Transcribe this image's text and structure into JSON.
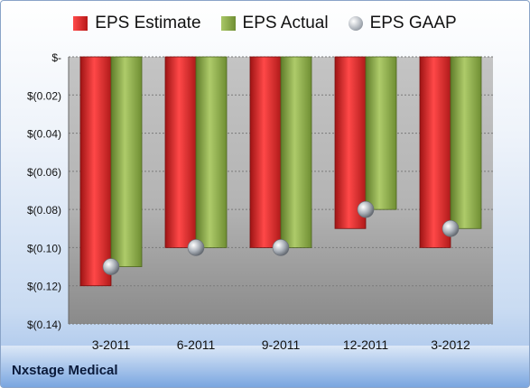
{
  "chart_data": {
    "type": "bar",
    "categories": [
      "3-2011",
      "6-2011",
      "9-2011",
      "12-2011",
      "3-2012"
    ],
    "series": [
      {
        "name": "EPS Estimate",
        "values": [
          -0.12,
          -0.1,
          -0.1,
          -0.09,
          -0.1
        ],
        "color": "#d12a2a"
      },
      {
        "name": "EPS Actual",
        "values": [
          -0.11,
          -0.1,
          -0.1,
          -0.08,
          -0.09
        ],
        "color": "#8fb04a"
      },
      {
        "name": "EPS GAAP",
        "values": [
          -0.11,
          -0.1,
          -0.1,
          -0.08,
          -0.09
        ],
        "color": "#b8bcc4",
        "marker": "sphere"
      }
    ],
    "yticks": [
      0,
      -0.02,
      -0.04,
      -0.06,
      -0.08,
      -0.1,
      -0.12,
      -0.14
    ],
    "ytick_labels": [
      "$-",
      "$(0.02)",
      "$(0.04)",
      "$(0.06)",
      "$(0.08)",
      "$(0.10)",
      "$(0.12)",
      "$(0.14)"
    ],
    "ylim": [
      -0.14,
      0
    ],
    "legend_position": "top",
    "grid": true
  },
  "footer": {
    "company": "Nxstage Medical"
  }
}
